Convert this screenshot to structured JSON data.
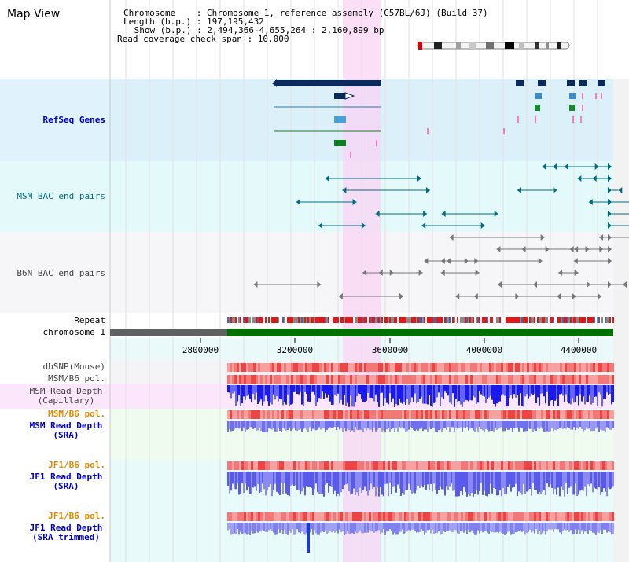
{
  "title": "Map View",
  "info": {
    "chromosome": "Chromosome    : Chromosome 1, reference assembly (C57BL/6J) (Build 37)",
    "length": "Length (b.p.) : 197,195,432",
    "show": " Show (b.p.) : 2,494,366-4,655,264 : 2,160,899 bp",
    "coverage": "Read coverage check span : 10,000"
  },
  "tracks": {
    "refseq": "RefSeq Genes",
    "msm_bac": "MSM BAC end pairs",
    "b6n_bac": "B6N BAC end pairs",
    "repeat": "Repeat",
    "chromosome": "chromosome 1",
    "dbsnp": "dbSNP(Mouse)",
    "msm_b6_pol_1": "MSM/B6 pol.",
    "msm_read_depth_cap": "MSM Read Depth\n(Capillary)",
    "msm_b6_pol_2": "MSM/B6 pol.",
    "msm_read_depth_sra": "MSM Read Depth\n(SRA)",
    "jf1_b6_pol_1": "JF1/B6 pol.",
    "jf1_read_depth_sra": "JF1 Read Depth\n(SRA)",
    "jf1_b6_pol_2": "JF1/B6 pol.",
    "jf1_read_depth_trimmed": "JF1 Read Depth\n(SRA trimmed)"
  },
  "axis_ticks": [
    "2800000",
    "3200000",
    "3600000",
    "4000000",
    "4400000"
  ],
  "colors": {
    "refseq_bg": "#dcf0fa",
    "msm_bac_bg": "#e4fafa",
    "b6n_bac_bg": "#f6f6f8",
    "highlight": "#f8d4f4",
    "chromosome_fill": "#007000",
    "dark_navy": "#0a2a5c",
    "teal": "#006c80",
    "gray": "#777777",
    "depth_blue": "#3030ee",
    "depth_light": "#8888f0",
    "pol_red": "#ee4444",
    "pol_pink": "#f6a0a0"
  }
}
